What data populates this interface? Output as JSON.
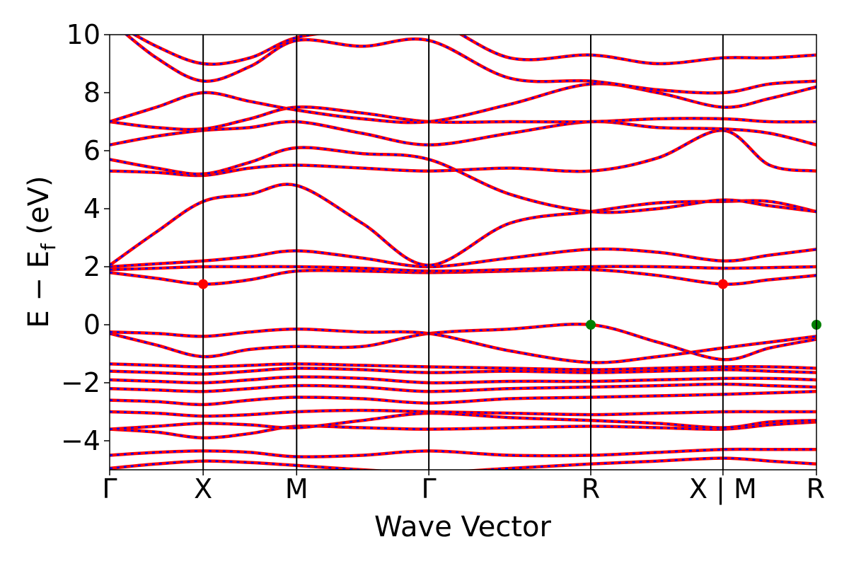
{
  "chart_data": {
    "type": "line",
    "xlabel": "Wave Vector",
    "ylabel": "E − E_f (eV)",
    "ylabel_parts": {
      "main": "E − E",
      "sub": "f",
      "unit": " (eV)"
    },
    "ylim": [
      -5,
      10
    ],
    "yticks": [
      {
        "value": -4,
        "label": "−4"
      },
      {
        "value": -2,
        "label": "−2"
      },
      {
        "value": 0,
        "label": "0"
      },
      {
        "value": 2,
        "label": "2"
      },
      {
        "value": 4,
        "label": "4"
      },
      {
        "value": 6,
        "label": "6"
      },
      {
        "value": 8,
        "label": "8"
      },
      {
        "value": 10,
        "label": "10"
      }
    ],
    "kpath": [
      {
        "label": "Γ",
        "x": 0.0
      },
      {
        "label": "X",
        "x": 0.5
      },
      {
        "label": "M",
        "x": 1.0
      },
      {
        "label": "Γ",
        "x": 1.707
      },
      {
        "label": "R",
        "x": 2.573
      },
      {
        "label": "X | M",
        "x": 3.28
      },
      {
        "label": "R",
        "x": 3.78
      }
    ],
    "grid": false,
    "series_colors": {
      "primary": "#ff0000",
      "overlay": "#0000ff"
    },
    "band_edge_colors": {
      "cbm": "#ff0000",
      "vbm": "#008000"
    },
    "band_edges": [
      {
        "type": "cbm",
        "x": 0.5,
        "y": 1.4
      },
      {
        "type": "cbm",
        "x": 3.28,
        "y": 1.4
      },
      {
        "type": "vbm",
        "x": 2.573,
        "y": 0.0
      },
      {
        "type": "vbm",
        "x": 3.78,
        "y": 0.0
      }
    ],
    "bands": [
      [
        [
          0.0,
          -4.95
        ],
        [
          0.25,
          -4.8
        ],
        [
          0.5,
          -4.7
        ],
        [
          0.75,
          -4.75
        ],
        [
          1.0,
          -4.85
        ],
        [
          1.35,
          -5.0
        ],
        [
          1.707,
          -5.1
        ],
        [
          2.14,
          -4.95
        ],
        [
          2.573,
          -4.8
        ],
        [
          2.93,
          -4.7
        ],
        [
          3.28,
          -4.6
        ],
        [
          3.53,
          -4.7
        ],
        [
          3.78,
          -4.8
        ]
      ],
      [
        [
          0.0,
          -4.5
        ],
        [
          0.25,
          -4.4
        ],
        [
          0.5,
          -4.35
        ],
        [
          0.75,
          -4.4
        ],
        [
          1.0,
          -4.55
        ],
        [
          1.35,
          -4.5
        ],
        [
          1.707,
          -4.35
        ],
        [
          2.14,
          -4.5
        ],
        [
          2.573,
          -4.5
        ],
        [
          2.93,
          -4.4
        ],
        [
          3.28,
          -4.3
        ],
        [
          3.53,
          -4.3
        ],
        [
          3.78,
          -4.3
        ]
      ],
      [
        [
          0.0,
          -3.6
        ],
        [
          0.25,
          -3.7
        ],
        [
          0.5,
          -3.9
        ],
        [
          0.75,
          -3.75
        ],
        [
          1.0,
          -3.5
        ],
        [
          1.35,
          -3.55
        ],
        [
          1.707,
          -3.6
        ],
        [
          2.14,
          -3.55
        ],
        [
          2.573,
          -3.5
        ],
        [
          2.93,
          -3.55
        ],
        [
          3.28,
          -3.6
        ],
        [
          3.53,
          -3.45
        ],
        [
          3.78,
          -3.35
        ]
      ],
      [
        [
          0.0,
          -3.6
        ],
        [
          0.25,
          -3.5
        ],
        [
          0.5,
          -3.4
        ],
        [
          0.75,
          -3.45
        ],
        [
          1.0,
          -3.55
        ],
        [
          1.35,
          -3.3
        ],
        [
          1.707,
          -3.05
        ],
        [
          2.14,
          -3.2
        ],
        [
          2.573,
          -3.3
        ],
        [
          2.93,
          -3.4
        ],
        [
          3.28,
          -3.55
        ],
        [
          3.53,
          -3.35
        ],
        [
          3.78,
          -3.3
        ]
      ],
      [
        [
          0.0,
          -3.0
        ],
        [
          0.25,
          -3.05
        ],
        [
          0.5,
          -3.15
        ],
        [
          0.75,
          -3.1
        ],
        [
          1.0,
          -3.0
        ],
        [
          1.35,
          -2.95
        ],
        [
          1.707,
          -3.0
        ],
        [
          2.14,
          -3.05
        ],
        [
          2.573,
          -3.1
        ],
        [
          2.93,
          -3.05
        ],
        [
          3.28,
          -3.0
        ],
        [
          3.53,
          -3.0
        ],
        [
          3.78,
          -3.0
        ]
      ],
      [
        [
          0.0,
          -2.6
        ],
        [
          0.25,
          -2.65
        ],
        [
          0.5,
          -2.75
        ],
        [
          0.75,
          -2.6
        ],
        [
          1.0,
          -2.5
        ],
        [
          1.35,
          -2.55
        ],
        [
          1.707,
          -2.7
        ],
        [
          2.14,
          -2.55
        ],
        [
          2.573,
          -2.5
        ],
        [
          2.93,
          -2.45
        ],
        [
          3.28,
          -2.4
        ],
        [
          3.53,
          -2.35
        ],
        [
          3.78,
          -2.3
        ]
      ],
      [
        [
          0.0,
          -2.2
        ],
        [
          0.25,
          -2.25
        ],
        [
          0.5,
          -2.3
        ],
        [
          0.75,
          -2.2
        ],
        [
          1.0,
          -2.1
        ],
        [
          1.35,
          -2.15
        ],
        [
          1.707,
          -2.3
        ],
        [
          2.14,
          -2.2
        ],
        [
          2.573,
          -2.15
        ],
        [
          2.93,
          -2.1
        ],
        [
          3.28,
          -2.05
        ],
        [
          3.53,
          -2.1
        ],
        [
          3.78,
          -2.15
        ]
      ],
      [
        [
          0.0,
          -1.9
        ],
        [
          0.25,
          -1.95
        ],
        [
          0.5,
          -2.0
        ],
        [
          0.75,
          -1.9
        ],
        [
          1.0,
          -1.8
        ],
        [
          1.35,
          -1.85
        ],
        [
          1.707,
          -2.0
        ],
        [
          2.14,
          -1.95
        ],
        [
          2.573,
          -1.95
        ],
        [
          2.93,
          -1.9
        ],
        [
          3.28,
          -1.85
        ],
        [
          3.53,
          -1.85
        ],
        [
          3.78,
          -1.9
        ]
      ],
      [
        [
          0.0,
          -1.6
        ],
        [
          0.25,
          -1.65
        ],
        [
          0.5,
          -1.7
        ],
        [
          0.75,
          -1.6
        ],
        [
          1.0,
          -1.5
        ],
        [
          1.35,
          -1.55
        ],
        [
          1.707,
          -1.65
        ],
        [
          2.14,
          -1.6
        ],
        [
          2.573,
          -1.65
        ],
        [
          2.93,
          -1.6
        ],
        [
          3.28,
          -1.55
        ],
        [
          3.53,
          -1.6
        ],
        [
          3.78,
          -1.65
        ]
      ],
      [
        [
          0.0,
          -1.35
        ],
        [
          0.25,
          -1.4
        ],
        [
          0.5,
          -1.45
        ],
        [
          0.75,
          -1.4
        ],
        [
          1.0,
          -1.35
        ],
        [
          1.35,
          -1.4
        ],
        [
          1.707,
          -1.45
        ],
        [
          2.14,
          -1.5
        ],
        [
          2.573,
          -1.55
        ],
        [
          2.93,
          -1.5
        ],
        [
          3.28,
          -1.45
        ],
        [
          3.53,
          -1.45
        ],
        [
          3.78,
          -1.5
        ]
      ],
      [
        [
          0.0,
          -0.3
        ],
        [
          0.25,
          -0.7
        ],
        [
          0.5,
          -1.1
        ],
        [
          0.75,
          -0.85
        ],
        [
          1.0,
          -0.75
        ],
        [
          1.35,
          -0.75
        ],
        [
          1.707,
          -0.3
        ],
        [
          2.14,
          -0.15
        ],
        [
          2.573,
          0.0
        ],
        [
          2.93,
          -0.6
        ],
        [
          3.28,
          -1.2
        ],
        [
          3.53,
          -0.8
        ],
        [
          3.78,
          -0.5
        ]
      ],
      [
        [
          0.0,
          -0.25
        ],
        [
          0.25,
          -0.3
        ],
        [
          0.5,
          -0.4
        ],
        [
          0.75,
          -0.25
        ],
        [
          1.0,
          -0.15
        ],
        [
          1.35,
          -0.25
        ],
        [
          1.707,
          -0.3
        ],
        [
          2.14,
          -0.9
        ],
        [
          2.573,
          -1.3
        ],
        [
          2.93,
          -1.1
        ],
        [
          3.28,
          -0.8
        ],
        [
          3.53,
          -0.6
        ],
        [
          3.78,
          -0.4
        ]
      ],
      [
        [
          0.0,
          1.8
        ],
        [
          0.25,
          1.6
        ],
        [
          0.5,
          1.4
        ],
        [
          0.75,
          1.55
        ],
        [
          1.0,
          1.85
        ],
        [
          1.35,
          1.85
        ],
        [
          1.707,
          1.8
        ],
        [
          2.14,
          1.85
        ],
        [
          2.573,
          1.9
        ],
        [
          2.93,
          1.7
        ],
        [
          3.28,
          1.4
        ],
        [
          3.53,
          1.55
        ],
        [
          3.78,
          1.7
        ]
      ],
      [
        [
          0.0,
          1.9
        ],
        [
          0.25,
          1.95
        ],
        [
          0.5,
          2.0
        ],
        [
          0.75,
          2.0
        ],
        [
          1.0,
          2.0
        ],
        [
          1.35,
          1.95
        ],
        [
          1.707,
          1.85
        ],
        [
          2.14,
          1.9
        ],
        [
          2.573,
          2.0
        ],
        [
          2.93,
          2.0
        ],
        [
          3.28,
          1.95
        ],
        [
          3.53,
          1.97
        ],
        [
          3.78,
          2.0
        ]
      ],
      [
        [
          0.0,
          2.0
        ],
        [
          0.25,
          2.1
        ],
        [
          0.5,
          2.2
        ],
        [
          0.75,
          2.35
        ],
        [
          1.0,
          2.55
        ],
        [
          1.35,
          2.3
        ],
        [
          1.707,
          2.0
        ],
        [
          2.14,
          2.3
        ],
        [
          2.573,
          2.6
        ],
        [
          2.93,
          2.5
        ],
        [
          3.28,
          2.2
        ],
        [
          3.53,
          2.4
        ],
        [
          3.78,
          2.6
        ]
      ],
      [
        [
          0.0,
          2.05
        ],
        [
          0.25,
          3.2
        ],
        [
          0.5,
          4.25
        ],
        [
          0.75,
          4.5
        ],
        [
          1.0,
          4.8
        ],
        [
          1.35,
          3.5
        ],
        [
          1.707,
          2.05
        ],
        [
          2.14,
          3.5
        ],
        [
          2.573,
          3.9
        ],
        [
          2.93,
          4.2
        ],
        [
          3.28,
          4.25
        ],
        [
          3.53,
          4.25
        ],
        [
          3.78,
          3.9
        ]
      ],
      [
        [
          0.0,
          5.3
        ],
        [
          0.25,
          5.25
        ],
        [
          0.5,
          5.15
        ],
        [
          0.75,
          5.4
        ],
        [
          1.0,
          5.5
        ],
        [
          1.35,
          5.4
        ],
        [
          1.707,
          5.3
        ],
        [
          2.14,
          5.4
        ],
        [
          2.573,
          5.3
        ],
        [
          2.93,
          5.75
        ],
        [
          3.28,
          6.7
        ],
        [
          3.53,
          5.5
        ],
        [
          3.78,
          5.3
        ]
      ],
      [
        [
          0.0,
          5.7
        ],
        [
          0.25,
          5.4
        ],
        [
          0.5,
          5.2
        ],
        [
          0.75,
          5.6
        ],
        [
          1.0,
          6.1
        ],
        [
          1.35,
          5.9
        ],
        [
          1.707,
          5.7
        ],
        [
          2.14,
          4.5
        ],
        [
          2.573,
          3.9
        ],
        [
          2.93,
          4.0
        ],
        [
          3.28,
          4.3
        ],
        [
          3.53,
          4.1
        ],
        [
          3.78,
          3.9
        ]
      ],
      [
        [
          0.0,
          6.2
        ],
        [
          0.25,
          6.5
        ],
        [
          0.5,
          6.7
        ],
        [
          0.75,
          6.8
        ],
        [
          1.0,
          7.0
        ],
        [
          1.35,
          6.6
        ],
        [
          1.707,
          6.2
        ],
        [
          2.14,
          6.6
        ],
        [
          2.573,
          7.0
        ],
        [
          2.93,
          6.8
        ],
        [
          3.28,
          6.75
        ],
        [
          3.53,
          6.6
        ],
        [
          3.78,
          6.2
        ]
      ],
      [
        [
          0.0,
          7.0
        ],
        [
          0.25,
          6.8
        ],
        [
          0.5,
          6.75
        ],
        [
          0.75,
          7.1
        ],
        [
          1.0,
          7.5
        ],
        [
          1.35,
          7.3
        ],
        [
          1.707,
          7.0
        ],
        [
          2.14,
          7.0
        ],
        [
          2.573,
          7.0
        ],
        [
          2.93,
          7.1
        ],
        [
          3.28,
          7.1
        ],
        [
          3.53,
          7.0
        ],
        [
          3.78,
          7.0
        ]
      ],
      [
        [
          0.0,
          7.0
        ],
        [
          0.25,
          7.5
        ],
        [
          0.5,
          8.0
        ],
        [
          0.75,
          7.7
        ],
        [
          1.0,
          7.4
        ],
        [
          1.35,
          7.1
        ],
        [
          1.707,
          7.0
        ],
        [
          2.14,
          7.6
        ],
        [
          2.573,
          8.3
        ],
        [
          2.93,
          8.0
        ],
        [
          3.28,
          7.5
        ],
        [
          3.53,
          7.8
        ],
        [
          3.78,
          8.2
        ]
      ],
      [
        [
          0.0,
          10.5
        ],
        [
          0.25,
          9.2
        ],
        [
          0.5,
          8.4
        ],
        [
          0.75,
          8.9
        ],
        [
          1.0,
          9.8
        ],
        [
          1.35,
          9.6
        ],
        [
          1.707,
          9.8
        ],
        [
          2.14,
          8.5
        ],
        [
          2.573,
          8.4
        ],
        [
          2.93,
          8.1
        ],
        [
          3.28,
          8.0
        ],
        [
          3.53,
          8.3
        ],
        [
          3.78,
          8.4
        ]
      ],
      [
        [
          0.0,
          10.5
        ],
        [
          0.25,
          9.6
        ],
        [
          0.5,
          9.0
        ],
        [
          0.75,
          9.2
        ],
        [
          1.0,
          9.9
        ],
        [
          1.35,
          10.2
        ],
        [
          1.707,
          10.5
        ],
        [
          2.14,
          9.2
        ],
        [
          2.573,
          9.3
        ],
        [
          2.93,
          9.0
        ],
        [
          3.28,
          9.2
        ],
        [
          3.53,
          9.2
        ],
        [
          3.78,
          9.3
        ]
      ]
    ]
  }
}
